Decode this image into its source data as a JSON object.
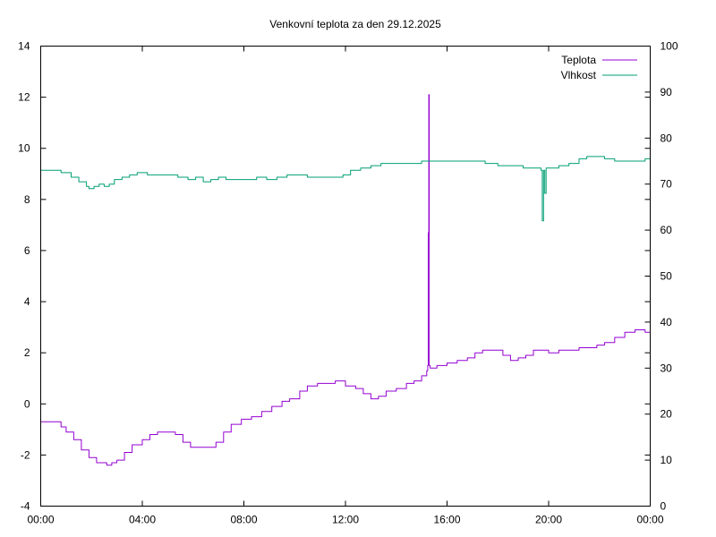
{
  "chart_data": {
    "type": "line",
    "title": "Venkovní teplota za den 29.12.2025",
    "xlabel": "",
    "ylabel": "",
    "y2label": "",
    "x_ticks": [
      "00:00",
      "04:00",
      "08:00",
      "12:00",
      "16:00",
      "20:00",
      "00:00"
    ],
    "xlim": [
      0,
      24
    ],
    "ylim": [
      -4,
      14
    ],
    "y_ticks": [
      -4,
      -2,
      0,
      2,
      4,
      6,
      8,
      10,
      12,
      14
    ],
    "y2lim": [
      0,
      100
    ],
    "y2_ticks": [
      0,
      10,
      20,
      30,
      40,
      50,
      60,
      70,
      80,
      90,
      100
    ],
    "legend_position": "top-right",
    "grid": false,
    "series": [
      {
        "name": "Teplota",
        "axis": "left",
        "color": "#9400d3",
        "x": [
          0,
          0.5,
          0.8,
          1.0,
          1.3,
          1.6,
          1.9,
          2.2,
          2.6,
          2.8,
          3.0,
          3.3,
          3.6,
          4.0,
          4.3,
          4.6,
          5.0,
          5.3,
          5.6,
          5.9,
          6.3,
          6.6,
          6.9,
          7.2,
          7.5,
          7.9,
          8.3,
          8.7,
          9.1,
          9.5,
          9.8,
          10.2,
          10.5,
          10.9,
          11.3,
          11.6,
          12.0,
          12.4,
          12.7,
          13.0,
          13.3,
          13.6,
          14.0,
          14.4,
          14.7,
          15.0,
          15.2,
          15.24,
          15.26,
          15.28,
          15.3,
          15.33,
          15.6,
          16.0,
          16.4,
          16.8,
          17.1,
          17.4,
          17.8,
          18.2,
          18.5,
          18.8,
          19.1,
          19.4,
          19.7,
          20.0,
          20.4,
          20.8,
          21.2,
          21.6,
          21.9,
          22.2,
          22.6,
          23.0,
          23.4,
          23.8,
          24.0
        ],
        "values": [
          -0.7,
          -0.7,
          -0.9,
          -1.1,
          -1.4,
          -1.8,
          -2.1,
          -2.3,
          -2.4,
          -2.3,
          -2.2,
          -1.9,
          -1.6,
          -1.4,
          -1.2,
          -1.1,
          -1.1,
          -1.2,
          -1.5,
          -1.7,
          -1.7,
          -1.7,
          -1.5,
          -1.1,
          -0.8,
          -0.6,
          -0.5,
          -0.3,
          -0.1,
          0.1,
          0.2,
          0.5,
          0.7,
          0.8,
          0.8,
          0.9,
          0.7,
          0.6,
          0.4,
          0.2,
          0.3,
          0.5,
          0.6,
          0.8,
          0.9,
          1.1,
          1.3,
          1.5,
          6.7,
          12.1,
          1.5,
          1.4,
          1.5,
          1.6,
          1.7,
          1.8,
          2.0,
          2.1,
          2.1,
          1.9,
          1.7,
          1.8,
          1.9,
          2.1,
          2.1,
          2.0,
          2.1,
          2.1,
          2.2,
          2.2,
          2.3,
          2.4,
          2.6,
          2.8,
          2.9,
          2.8,
          2.8
        ]
      },
      {
        "name": "Vlhkost",
        "axis": "right",
        "color": "#009e73",
        "x": [
          0,
          0.5,
          0.8,
          1.2,
          1.5,
          1.8,
          1.9,
          2.1,
          2.3,
          2.5,
          2.7,
          2.9,
          3.2,
          3.5,
          3.8,
          4.2,
          4.6,
          5.0,
          5.4,
          5.8,
          6.1,
          6.4,
          6.7,
          7.0,
          7.3,
          7.7,
          8.1,
          8.5,
          8.9,
          9.3,
          9.7,
          10.1,
          10.5,
          10.9,
          11.3,
          11.6,
          11.9,
          12.2,
          12.6,
          13.0,
          13.4,
          13.8,
          14.2,
          14.6,
          15.0,
          15.5,
          16.0,
          16.5,
          17.0,
          17.5,
          18.0,
          18.5,
          19.0,
          19.4,
          19.7,
          19.75,
          19.8,
          19.85,
          19.9,
          20.0,
          20.4,
          20.8,
          21.2,
          21.5,
          21.8,
          22.2,
          22.6,
          23.0,
          23.4,
          23.8,
          24.0
        ],
        "values": [
          73,
          73,
          72.5,
          71.5,
          70.5,
          69.5,
          69,
          69.5,
          70,
          69.5,
          70,
          71,
          71.5,
          72,
          72.5,
          72,
          72,
          72,
          71.5,
          71,
          71.5,
          70.5,
          71,
          71.5,
          71,
          71,
          71,
          71.5,
          71,
          71.5,
          72,
          72,
          71.5,
          71.5,
          71.5,
          71.5,
          72,
          73,
          73.5,
          74,
          74.5,
          74.5,
          74.5,
          74.5,
          75,
          75,
          75,
          75,
          75,
          74.5,
          74,
          74,
          73.5,
          73.5,
          73,
          62,
          73,
          68,
          73.5,
          73.5,
          74,
          74.5,
          75.5,
          76,
          76,
          75.5,
          75,
          75,
          75,
          75.5,
          75.5
        ]
      }
    ]
  }
}
